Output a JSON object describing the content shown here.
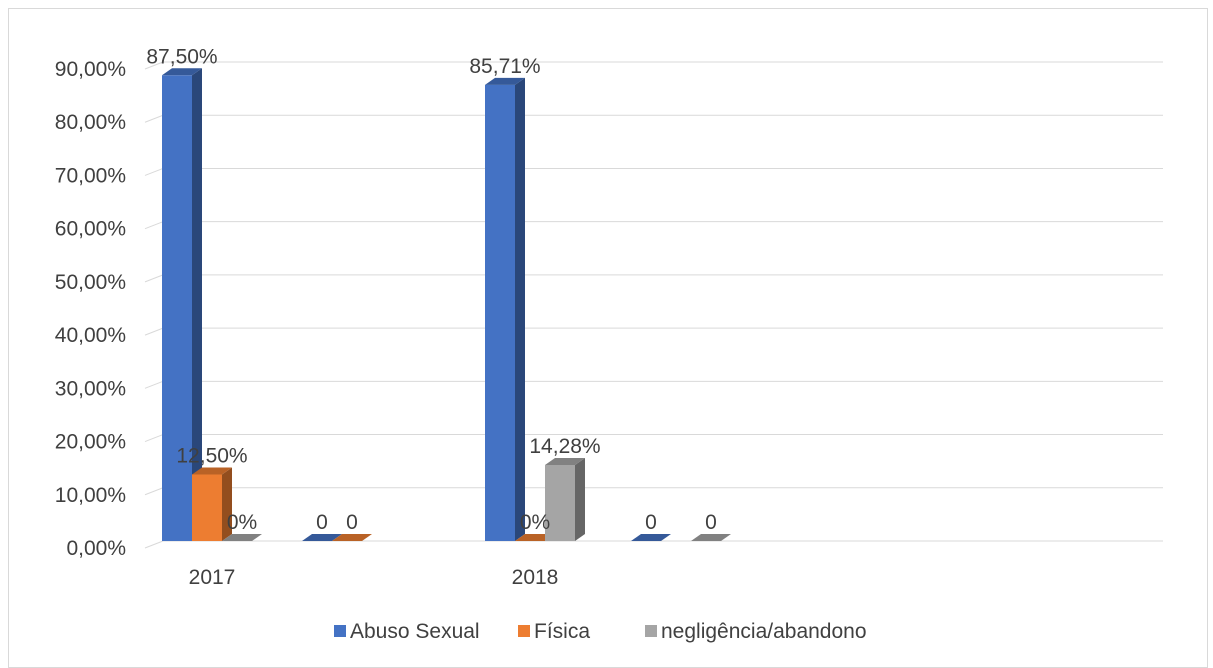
{
  "chart_data": {
    "type": "bar",
    "style": "3d-clustered-column",
    "categories": [
      "2017",
      "",
      "2018",
      ""
    ],
    "series": [
      {
        "name": "Abuso Sexual",
        "color": "#4472C4",
        "values": [
          87.5,
          0,
          85.71,
          0
        ],
        "labels": [
          "87,50%",
          "0",
          "85,71%",
          "0"
        ]
      },
      {
        "name": "Física",
        "color": "#ED7D31",
        "values": [
          12.5,
          0,
          0,
          null
        ],
        "labels": [
          "12,50%",
          "0",
          "0%",
          ""
        ]
      },
      {
        "name": "negligência/abandono",
        "color": "#A5A5A5",
        "values": [
          0,
          null,
          14.28,
          0
        ],
        "labels": [
          "0%",
          "",
          "14,28%",
          "0"
        ]
      }
    ],
    "yticks": [
      "0,00%",
      "10,00%",
      "20,00%",
      "30,00%",
      "40,00%",
      "50,00%",
      "60,00%",
      "70,00%",
      "80,00%",
      "90,00%"
    ],
    "ylim": [
      0,
      90
    ],
    "grid": true,
    "legend": "bottom"
  }
}
